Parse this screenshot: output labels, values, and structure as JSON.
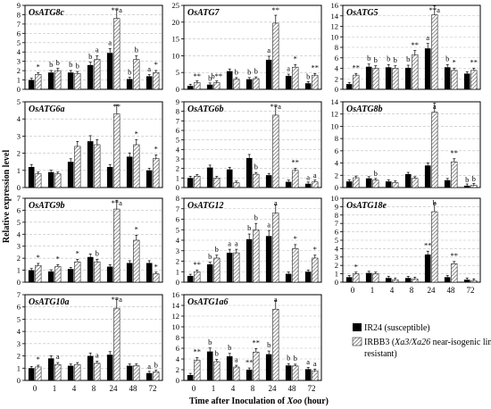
{
  "figure": {
    "y_axis_label": "Relative expression level",
    "x_axis_label_prefix": "Time after Inoculation of ",
    "x_axis_label_italic": "Xoo",
    "x_axis_label_suffix": " (hour)",
    "x_ticks": [
      "0",
      "1",
      "4",
      "8",
      "24",
      "48",
      "72"
    ],
    "legend": {
      "series1": "IR24 (susceptible)",
      "series2_prefix": "IRBB3 (",
      "series2_italic": "Xa3/Xa26",
      "series2_suffix": " near-isogenic line,",
      "series2_line2": "resistant)"
    },
    "colors": {
      "ir24": "#000000",
      "irbb3_hatch": "#555555",
      "grid": "#bdbdbd"
    }
  },
  "chart_data": [
    {
      "type": "bar",
      "title": "OsATG8c",
      "categories": [
        "0",
        "1",
        "4",
        "8",
        "24",
        "48",
        "72"
      ],
      "ylim": [
        0,
        9
      ],
      "yticks": [
        0,
        1,
        2,
        3,
        4,
        5,
        6,
        7,
        8,
        9
      ],
      "series": [
        {
          "name": "IR24 (susceptible)",
          "values": [
            1.0,
            1.8,
            1.8,
            2.6,
            3.9,
            1.1,
            1.4
          ]
        },
        {
          "name": "IRBB3 (Xa3/Xa26 near-isogenic line, resistant)",
          "values": [
            1.6,
            2.0,
            1.7,
            3.2,
            7.6,
            3.2,
            1.8
          ]
        }
      ],
      "annotations": [
        [
          "*"
        ],
        [
          "b",
          "b"
        ],
        [
          "b",
          "b"
        ],
        [
          "b",
          "a"
        ],
        [
          "a",
          "**a"
        ],
        [
          "b",
          "b"
        ],
        [
          "a",
          "*"
        ]
      ]
    },
    {
      "type": "bar",
      "title": "OsATG7",
      "categories": [
        "0",
        "1",
        "4",
        "8",
        "24",
        "48",
        "72"
      ],
      "ylim": [
        0,
        25
      ],
      "yticks": [
        0,
        5,
        10,
        15,
        20,
        25
      ],
      "series": [
        {
          "name": "IR24 (susceptible)",
          "values": [
            1.0,
            1.4,
            5.4,
            3.0,
            8.8,
            4.0,
            1.8
          ]
        },
        {
          "name": "IRBB3 (Xa3/Xa26 near-isogenic line, resistant)",
          "values": [
            2.0,
            2.0,
            3.0,
            3.2,
            19.7,
            6.6,
            4.2
          ]
        }
      ],
      "annotations": [
        [
          "**"
        ],
        [
          "b",
          "b**"
        ],
        [
          "b"
        ],
        [
          "b",
          "b"
        ],
        [
          "a",
          "**"
        ],
        [
          "a",
          "*"
        ],
        [
          "b",
          "**"
        ]
      ]
    },
    {
      "type": "bar",
      "title": "OsATG5",
      "categories": [
        "0",
        "1",
        "4",
        "8",
        "24",
        "48",
        "72"
      ],
      "ylim": [
        0,
        16
      ],
      "yticks": [
        0,
        2,
        4,
        6,
        8,
        10,
        12,
        14,
        16
      ],
      "series": [
        {
          "name": "IR24 (susceptible)",
          "values": [
            1.0,
            4.3,
            4.2,
            4.1,
            7.8,
            4.2,
            3.0
          ]
        },
        {
          "name": "IRBB3 (Xa3/Xa26 near-isogenic line, resistant)",
          "values": [
            2.7,
            4.0,
            4.0,
            6.6,
            14.2,
            3.6,
            3.6
          ]
        }
      ],
      "annotations": [
        [
          "**"
        ],
        [
          "b",
          "b"
        ],
        [
          "b",
          "b"
        ],
        [
          "b",
          "**"
        ],
        [
          "a",
          "**a"
        ],
        [
          "b",
          "*"
        ],
        [
          "**"
        ]
      ]
    },
    {
      "type": "bar",
      "title": "OsATG6a",
      "categories": [
        "0",
        "1",
        "4",
        "8",
        "24",
        "48",
        "72"
      ],
      "ylim": [
        0,
        5
      ],
      "yticks": [
        0,
        1,
        2,
        3,
        4,
        5
      ],
      "series": [
        {
          "name": "IR24 (susceptible)",
          "values": [
            1.2,
            0.9,
            1.5,
            2.7,
            1.2,
            1.8,
            1.0
          ]
        },
        {
          "name": "IRBB3 (Xa3/Xa26 near-isogenic line, resistant)",
          "values": [
            0.8,
            0.8,
            2.4,
            2.5,
            4.3,
            2.5,
            1.7
          ]
        }
      ],
      "annotations": [
        [],
        [],
        [],
        [],
        [
          "**"
        ],
        [
          "*"
        ],
        [
          "*"
        ]
      ]
    },
    {
      "type": "bar",
      "title": "OsATG6b",
      "categories": [
        "0",
        "1",
        "4",
        "8",
        "24",
        "48",
        "72"
      ],
      "ylim": [
        0,
        9
      ],
      "yticks": [
        0,
        1,
        2,
        3,
        4,
        5,
        6,
        7,
        8,
        9
      ],
      "series": [
        {
          "name": "IR24 (susceptible)",
          "values": [
            1.0,
            2.1,
            1.9,
            3.1,
            1.3,
            0.6,
            0.4
          ]
        },
        {
          "name": "IRBB3 (Xa3/Xa26 near-isogenic line, resistant)",
          "values": [
            1.2,
            1.0,
            0.5,
            1.4,
            7.6,
            1.8,
            0.6
          ]
        }
      ],
      "annotations": [
        [],
        [],
        [],
        [
          "b"
        ],
        [
          "**a"
        ],
        [
          "**"
        ],
        [
          "a",
          "a"
        ]
      ]
    },
    {
      "type": "bar",
      "title": "OsATG8b",
      "categories": [
        "0",
        "1",
        "4",
        "8",
        "24",
        "48",
        "72"
      ],
      "ylim": [
        0,
        14
      ],
      "yticks": [
        0,
        2,
        4,
        6,
        8,
        10,
        12,
        14
      ],
      "series": [
        {
          "name": "IR24 (susceptible)",
          "values": [
            1.0,
            1.5,
            1.0,
            2.2,
            3.6,
            1.2,
            0.3
          ]
        },
        {
          "name": "IRBB3 (Xa3/Xa26 near-isogenic line, resistant)",
          "values": [
            1.6,
            1.2,
            0.8,
            1.5,
            12.3,
            4.2,
            0.4
          ]
        }
      ],
      "annotations": [
        [],
        [
          "b"
        ],
        [],
        [],
        [
          "a"
        ],
        [
          "**"
        ],
        [
          "b",
          "b"
        ]
      ]
    },
    {
      "type": "bar",
      "title": "OsATG9b",
      "categories": [
        "0",
        "1",
        "4",
        "8",
        "24",
        "48",
        "72"
      ],
      "ylim": [
        0,
        7
      ],
      "yticks": [
        0,
        1,
        2,
        3,
        4,
        5,
        6,
        7
      ],
      "series": [
        {
          "name": "IR24 (susceptible)",
          "values": [
            1.0,
            0.9,
            1.1,
            2.1,
            1.3,
            1.6,
            1.6
          ]
        },
        {
          "name": "IRBB3 (Xa3/Xa26 near-isogenic line, resistant)",
          "values": [
            1.4,
            1.3,
            1.7,
            1.7,
            6.1,
            3.5,
            0.7
          ]
        }
      ],
      "annotations": [
        [
          "*"
        ],
        [
          "*"
        ],
        [
          "*"
        ],
        [
          "b"
        ],
        [
          "**a"
        ],
        [
          "*"
        ],
        [
          "*"
        ]
      ]
    },
    {
      "type": "bar",
      "title": "OsATG12",
      "categories": [
        "0",
        "1",
        "4",
        "8",
        "24",
        "48",
        "72"
      ],
      "ylim": [
        0,
        8
      ],
      "yticks": [
        0,
        1,
        2,
        3,
        4,
        5,
        6,
        7,
        8
      ],
      "series": [
        {
          "name": "IR24 (susceptible)",
          "values": [
            0.6,
            1.7,
            2.8,
            4.1,
            4.4,
            0.8,
            1.0
          ]
        },
        {
          "name": "IRBB3 (Xa3/Xa26 near-isogenic line, resistant)",
          "values": [
            1.0,
            2.3,
            2.8,
            5.0,
            6.6,
            3.2,
            2.3
          ]
        }
      ],
      "annotations": [
        [
          "**"
        ],
        [
          "b",
          "b"
        ],
        [
          "a",
          "a"
        ],
        [
          "b",
          "b"
        ],
        [
          "a",
          "a"
        ],
        [
          "*"
        ],
        [
          "*"
        ]
      ]
    },
    {
      "type": "bar",
      "title": "OsATG18e",
      "categories": [
        "0",
        "1",
        "4",
        "8",
        "24",
        "48",
        "72"
      ],
      "ylim": [
        0,
        10
      ],
      "yticks": [
        0,
        1,
        2,
        3,
        4,
        5,
        6,
        7,
        8,
        9,
        10
      ],
      "series": [
        {
          "name": "IR24 (susceptible)",
          "values": [
            0.6,
            1.1,
            0.5,
            0.5,
            3.3,
            0.6,
            0.3
          ]
        },
        {
          "name": "IRBB3 (Xa3/Xa26 near-isogenic line, resistant)",
          "values": [
            1.0,
            1.0,
            0.3,
            0.4,
            8.4,
            2.2,
            0.2
          ]
        }
      ],
      "annotations": [
        [
          "*"
        ],
        [],
        [],
        [],
        [
          "**",
          "b"
        ],
        [
          "**"
        ],
        []
      ]
    },
    {
      "type": "bar",
      "title": "OsATG10a",
      "categories": [
        "0",
        "1",
        "4",
        "8",
        "24",
        "48",
        "72"
      ],
      "ylim": [
        0,
        7
      ],
      "yticks": [
        0,
        1,
        2,
        3,
        4,
        5,
        6,
        7
      ],
      "series": [
        {
          "name": "IR24 (susceptible)",
          "values": [
            1.0,
            1.8,
            1.2,
            2.0,
            2.1,
            1.2,
            0.6
          ]
        },
        {
          "name": "IRBB3 (Xa3/Xa26 near-isogenic line, resistant)",
          "values": [
            1.1,
            1.3,
            1.3,
            1.4,
            5.9,
            1.2,
            0.7
          ]
        }
      ],
      "annotations": [
        [
          "*"
        ],
        [
          "a"
        ],
        [],
        [
          "a"
        ],
        [
          "**a"
        ],
        [],
        [
          "a",
          "b"
        ]
      ]
    },
    {
      "type": "bar",
      "title": "OsATG1a6",
      "categories": [
        "0",
        "1",
        "4",
        "8",
        "24",
        "48",
        "72"
      ],
      "ylim": [
        0,
        16
      ],
      "yticks": [
        0,
        2,
        4,
        6,
        8,
        10,
        12,
        14,
        16
      ],
      "series": [
        {
          "name": "IR24 (susceptible)",
          "values": [
            1.0,
            5.4,
            4.5,
            2.0,
            4.9,
            2.8,
            2.1
          ]
        },
        {
          "name": "IRBB3 (Xa3/Xa26 near-isogenic line, resistant)",
          "values": [
            3.8,
            3.5,
            2.5,
            5.3,
            13.3,
            2.7,
            1.8
          ]
        }
      ],
      "annotations": [
        [
          "**"
        ],
        [
          "b",
          "b"
        ],
        [
          "b",
          "a"
        ],
        [
          "**",
          "**"
        ],
        [
          "b",
          "a"
        ],
        [
          "b",
          "b"
        ],
        [
          "a",
          "a"
        ]
      ]
    }
  ]
}
